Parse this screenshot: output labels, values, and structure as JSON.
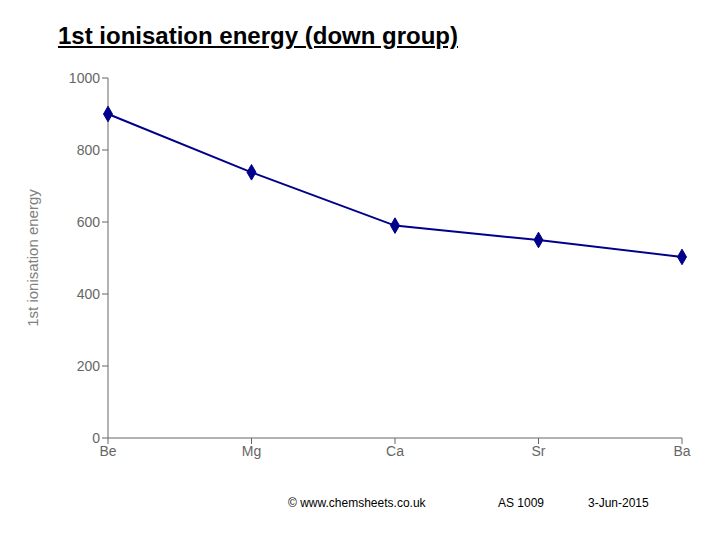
{
  "chart_data": {
    "type": "line",
    "title": "1st ionisation energy (down group)",
    "ylabel": "1st ionisation energy",
    "categories": [
      "Be",
      "Mg",
      "Ca",
      "Sr",
      "Ba"
    ],
    "values": [
      900,
      738,
      590,
      550,
      503
    ],
    "color": "#00008B",
    "marker": "diamond",
    "ylim": [
      0,
      1000
    ],
    "yticks": [
      0,
      200,
      400,
      600,
      800,
      1000
    ],
    "grid": false,
    "annotations": [
      "© www.chemsheets.co.uk",
      "AS 1009",
      "3-Jun-2015"
    ]
  }
}
